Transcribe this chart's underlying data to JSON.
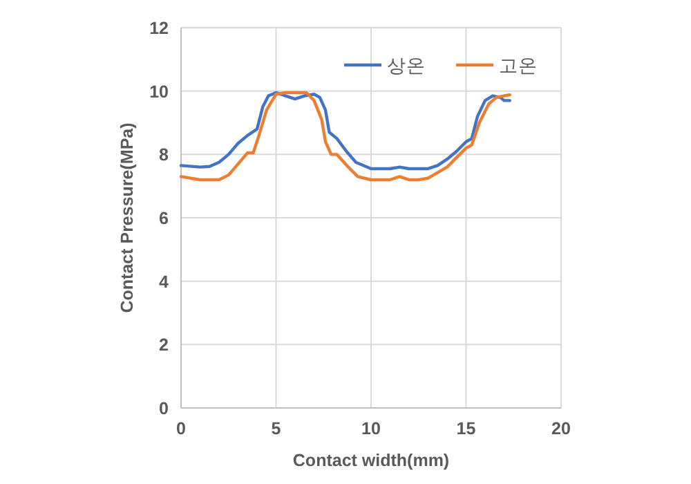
{
  "chart_data": {
    "type": "line",
    "xlabel": "Contact width(mm)",
    "ylabel": "Contact Pressure(MPa)",
    "xlim": [
      0,
      20
    ],
    "xticks": [
      0,
      5,
      10,
      15,
      20
    ],
    "ylim": [
      0,
      12
    ],
    "yticks": [
      0,
      2,
      4,
      6,
      8,
      10,
      12
    ],
    "grid": true,
    "legend": "top right",
    "marker": "none",
    "line_style": "solid",
    "series": [
      {
        "name": "상온",
        "color": "#4472c4",
        "x": [
          0,
          1,
          1.5,
          2,
          2.5,
          3,
          3.5,
          4,
          4.3,
          4.6,
          5,
          5.5,
          6,
          6.5,
          7,
          7.3,
          7.6,
          7.8,
          8.2,
          8.7,
          9.2,
          10,
          11,
          11.5,
          12,
          13,
          13.5,
          14,
          14.5,
          15,
          15.3,
          15.6,
          16,
          16.4,
          16.8,
          17,
          17.3
        ],
        "values": [
          7.65,
          7.6,
          7.62,
          7.75,
          8.0,
          8.35,
          8.6,
          8.8,
          9.5,
          9.85,
          9.95,
          9.85,
          9.75,
          9.85,
          9.9,
          9.8,
          9.4,
          8.7,
          8.5,
          8.1,
          7.75,
          7.55,
          7.55,
          7.6,
          7.55,
          7.55,
          7.65,
          7.85,
          8.1,
          8.4,
          8.5,
          9.2,
          9.7,
          9.85,
          9.8,
          9.7,
          9.7
        ]
      },
      {
        "name": "고온",
        "color": "#ed7d31",
        "x": [
          0,
          1,
          2,
          2.5,
          3,
          3.5,
          3.8,
          4.1,
          4.5,
          5,
          5.5,
          6,
          6.6,
          7,
          7.4,
          7.6,
          7.9,
          8.2,
          8.8,
          9.3,
          10,
          11,
          11.5,
          12,
          12.5,
          13,
          14,
          14.5,
          15,
          15.3,
          15.7,
          16.2,
          16.6,
          17,
          17.3
        ],
        "values": [
          7.3,
          7.2,
          7.2,
          7.35,
          7.7,
          8.05,
          8.05,
          8.6,
          9.4,
          9.9,
          9.95,
          9.95,
          9.95,
          9.7,
          9.1,
          8.4,
          8.0,
          8.0,
          7.6,
          7.3,
          7.2,
          7.2,
          7.3,
          7.2,
          7.2,
          7.25,
          7.6,
          7.9,
          8.2,
          8.3,
          9.0,
          9.6,
          9.8,
          9.85,
          9.88
        ]
      }
    ]
  }
}
